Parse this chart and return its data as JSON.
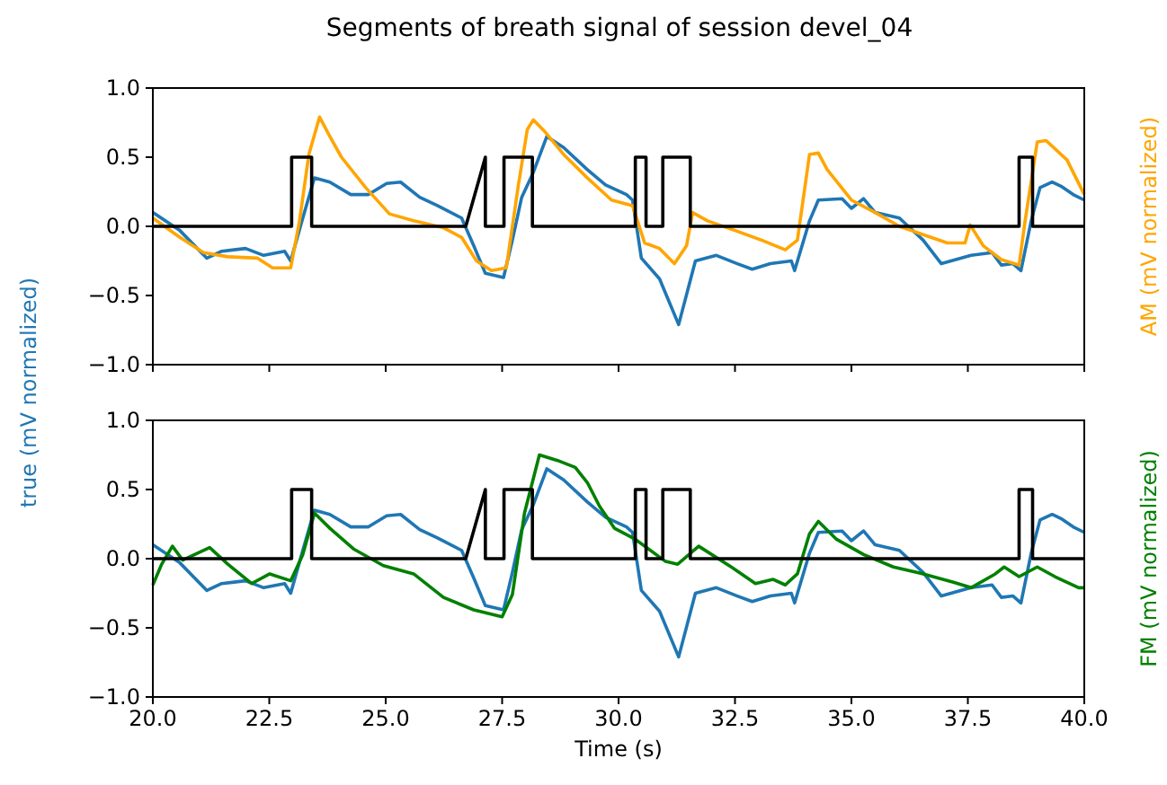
{
  "chart_data": [
    {
      "type": "line",
      "title": "Segments of breath signal of session devel_04",
      "ylabel": "true (mV normalized)",
      "y2label": "AM (mV normalized)",
      "xlim": [
        20,
        40
      ],
      "ylim": [
        -1,
        1
      ],
      "xticks": [
        {
          "value": 20,
          "label": null
        },
        {
          "value": 22.5,
          "label": null
        },
        {
          "value": 25,
          "label": null
        },
        {
          "value": 27.5,
          "label": null
        },
        {
          "value": 30,
          "label": null
        },
        {
          "value": 32.5,
          "label": null
        },
        {
          "value": 35,
          "label": null
        },
        {
          "value": 37.5,
          "label": null
        },
        {
          "value": 40,
          "label": null
        }
      ],
      "yticks": [
        {
          "value": -1,
          "label": "−1.0"
        },
        {
          "value": -0.5,
          "label": "−0.5"
        },
        {
          "value": 0,
          "label": "0.0"
        },
        {
          "value": 0.5,
          "label": "0.5"
        },
        {
          "value": 1,
          "label": "1.0"
        }
      ],
      "tick_labels": "y",
      "grid": false,
      "series": [
        {
          "color": "#1f77b4",
          "x": [
            20,
            20.58,
            21.16,
            21.48,
            21.99,
            22.38,
            22.83,
            22.96,
            23.22,
            23.47,
            23.8,
            24.25,
            24.63,
            25.02,
            25.32,
            25.73,
            26.11,
            26.63,
            26.89,
            27.14,
            27.53,
            27.72,
            27.92,
            28.17,
            28.46,
            28.82,
            29.33,
            29.72,
            30.17,
            30.3,
            30.49,
            30.88,
            31.29,
            31.65,
            32.1,
            32.55,
            32.87,
            33.26,
            33.71,
            33.78,
            34.1,
            34.29,
            34.8,
            35,
            35.26,
            35.51,
            36.03,
            36.54,
            36.93,
            37.57,
            38.02,
            38.22,
            38.47,
            38.64,
            38.86,
            39.05,
            39.31,
            39.5,
            39.76,
            40
          ],
          "values": [
            0.1,
            -0.03,
            -0.23,
            -0.18,
            -0.16,
            -0.21,
            -0.18,
            -0.25,
            0.06,
            0.35,
            0.32,
            0.23,
            0.23,
            0.31,
            0.32,
            0.21,
            0.15,
            0.06,
            -0.14,
            -0.34,
            -0.37,
            -0.1,
            0.21,
            0.39,
            0.65,
            0.57,
            0.41,
            0.3,
            0.23,
            0.19,
            -0.23,
            -0.38,
            -0.71,
            -0.25,
            -0.21,
            -0.27,
            -0.31,
            -0.27,
            -0.25,
            -0.32,
            0.04,
            0.19,
            0.2,
            0.13,
            0.2,
            0.1,
            0.06,
            -0.1,
            -0.27,
            -0.21,
            -0.19,
            -0.28,
            -0.27,
            -0.32,
            0.04,
            0.28,
            0.32,
            0.29,
            0.23,
            0.19
          ]
        },
        {
          "color": "#ffa500",
          "x": [
            20,
            20.58,
            21.09,
            21.61,
            22.25,
            22.57,
            22.96,
            23.15,
            23.35,
            23.58,
            23.8,
            24.05,
            24.57,
            25.08,
            25.6,
            26.24,
            26.63,
            26.95,
            27.27,
            27.59,
            27.85,
            28.04,
            28.17,
            28.43,
            28.82,
            29.33,
            29.85,
            30.3,
            30.56,
            30.88,
            31.2,
            31.46,
            31.59,
            31.91,
            32.42,
            33.07,
            33.58,
            33.84,
            34.1,
            34.29,
            34.48,
            35,
            35.51,
            36.03,
            36.54,
            37.06,
            37.44,
            37.55,
            37.83,
            38.22,
            38.6,
            38.73,
            38.99,
            39.18,
            39.63,
            40
          ],
          "values": [
            0.06,
            -0.08,
            -0.19,
            -0.22,
            -0.23,
            -0.3,
            -0.3,
            0.04,
            0.52,
            0.79,
            0.65,
            0.5,
            0.28,
            0.09,
            0.04,
            -0.01,
            -0.08,
            -0.25,
            -0.32,
            -0.3,
            0.3,
            0.7,
            0.77,
            0.68,
            0.52,
            0.35,
            0.19,
            0.15,
            -0.12,
            -0.16,
            -0.27,
            -0.14,
            0.1,
            0.04,
            -0.02,
            -0.1,
            -0.17,
            -0.1,
            0.52,
            0.53,
            0.41,
            0.19,
            0.1,
            0,
            -0.06,
            -0.12,
            -0.12,
            0.01,
            -0.14,
            -0.24,
            -0.28,
            0.04,
            0.61,
            0.62,
            0.48,
            0.23
          ]
        },
        {
          "color": "#000000",
          "x": [
            20,
            22.98,
            22.98,
            23.41,
            23.41,
            26.72,
            27.14,
            27.14,
            27.54,
            27.54,
            28.15,
            28.15,
            30.36,
            30.36,
            30.59,
            30.59,
            30.95,
            30.95,
            31.54,
            31.54,
            38.6,
            38.6,
            38.89,
            38.89,
            40
          ],
          "values": [
            0,
            0,
            0.5,
            0.5,
            0,
            0,
            0.5,
            0,
            0,
            0.5,
            0.5,
            0,
            0,
            0.5,
            0.5,
            0,
            0,
            0.5,
            0.5,
            0,
            0,
            0.5,
            0.5,
            0,
            0
          ]
        }
      ]
    },
    {
      "type": "line",
      "xlabel": "Time (s)",
      "y2label": "FM (mV normalized)",
      "xlim": [
        20,
        40
      ],
      "ylim": [
        -1,
        1
      ],
      "xticks": [
        {
          "value": 20,
          "label": "20.0"
        },
        {
          "value": 22.5,
          "label": "22.5"
        },
        {
          "value": 25,
          "label": "25.0"
        },
        {
          "value": 27.5,
          "label": "27.5"
        },
        {
          "value": 30,
          "label": "30.0"
        },
        {
          "value": 32.5,
          "label": "32.5"
        },
        {
          "value": 35,
          "label": "35.0"
        },
        {
          "value": 37.5,
          "label": "37.5"
        },
        {
          "value": 40,
          "label": "40.0"
        }
      ],
      "yticks": [
        {
          "value": -1,
          "label": "−1.0"
        },
        {
          "value": -0.5,
          "label": "−0.5"
        },
        {
          "value": 0,
          "label": "0.0"
        },
        {
          "value": 0.5,
          "label": "0.5"
        },
        {
          "value": 1,
          "label": "1.0"
        }
      ],
      "grid": false,
      "series": [
        {
          "color": "#1f77b4",
          "x": [
            20,
            20.58,
            21.16,
            21.48,
            21.99,
            22.38,
            22.83,
            22.96,
            23.22,
            23.47,
            23.8,
            24.25,
            24.63,
            25.02,
            25.32,
            25.73,
            26.11,
            26.63,
            26.89,
            27.14,
            27.53,
            27.72,
            27.92,
            28.17,
            28.46,
            28.82,
            29.33,
            29.72,
            30.17,
            30.3,
            30.49,
            30.88,
            31.29,
            31.65,
            32.1,
            32.55,
            32.87,
            33.26,
            33.71,
            33.78,
            34.1,
            34.29,
            34.8,
            35,
            35.26,
            35.51,
            36.03,
            36.54,
            36.93,
            37.57,
            38.02,
            38.22,
            38.47,
            38.64,
            38.86,
            39.05,
            39.31,
            39.5,
            39.76,
            40
          ],
          "values": [
            0.1,
            -0.03,
            -0.23,
            -0.18,
            -0.16,
            -0.21,
            -0.18,
            -0.25,
            0.06,
            0.35,
            0.32,
            0.23,
            0.23,
            0.31,
            0.32,
            0.21,
            0.15,
            0.06,
            -0.14,
            -0.34,
            -0.37,
            -0.1,
            0.21,
            0.39,
            0.65,
            0.57,
            0.41,
            0.3,
            0.23,
            0.19,
            -0.23,
            -0.38,
            -0.71,
            -0.25,
            -0.21,
            -0.27,
            -0.31,
            -0.27,
            -0.25,
            -0.32,
            0.04,
            0.19,
            0.2,
            0.13,
            0.2,
            0.1,
            0.06,
            -0.1,
            -0.27,
            -0.21,
            -0.19,
            -0.28,
            -0.27,
            -0.32,
            0.04,
            0.28,
            0.32,
            0.29,
            0.23,
            0.19
          ]
        },
        {
          "color": "#008000",
          "x": [
            20,
            20.19,
            20.42,
            20.64,
            21.22,
            21.61,
            22.12,
            22.51,
            22.96,
            23.22,
            23.47,
            23.8,
            24.31,
            24.95,
            25.6,
            26.24,
            26.89,
            27.5,
            27.72,
            27.98,
            28.3,
            28.69,
            29.07,
            29.33,
            29.59,
            29.91,
            30.36,
            31.01,
            31.27,
            31.72,
            32.42,
            32.94,
            33.32,
            33.58,
            33.84,
            34.1,
            34.29,
            34.68,
            35.26,
            35.9,
            36.54,
            37.19,
            37.57,
            38.09,
            38.28,
            38.6,
            38.99,
            39.37,
            39.88,
            40
          ],
          "values": [
            -0.19,
            -0.04,
            0.09,
            -0.01,
            0.08,
            -0.04,
            -0.18,
            -0.11,
            -0.16,
            0.03,
            0.33,
            0.22,
            0.07,
            -0.05,
            -0.11,
            -0.28,
            -0.37,
            -0.42,
            -0.26,
            0.33,
            0.75,
            0.71,
            0.66,
            0.55,
            0.38,
            0.22,
            0.14,
            -0.02,
            -0.04,
            0.09,
            -0.06,
            -0.18,
            -0.15,
            -0.19,
            -0.11,
            0.18,
            0.27,
            0.14,
            0.03,
            -0.06,
            -0.11,
            -0.17,
            -0.21,
            -0.11,
            -0.06,
            -0.13,
            -0.06,
            -0.13,
            -0.21,
            -0.21
          ]
        },
        {
          "color": "#000000",
          "x": [
            20,
            22.98,
            22.98,
            23.41,
            23.41,
            26.72,
            27.14,
            27.14,
            27.54,
            27.54,
            28.15,
            28.15,
            30.36,
            30.36,
            30.59,
            30.59,
            30.95,
            30.95,
            31.54,
            31.54,
            38.6,
            38.6,
            38.89,
            38.89,
            40
          ],
          "values": [
            0,
            0,
            0.5,
            0.5,
            0,
            0,
            0.5,
            0,
            0,
            0.5,
            0.5,
            0,
            0,
            0.5,
            0.5,
            0,
            0,
            0.5,
            0.5,
            0,
            0,
            0.5,
            0.5,
            0,
            0
          ]
        }
      ]
    }
  ]
}
